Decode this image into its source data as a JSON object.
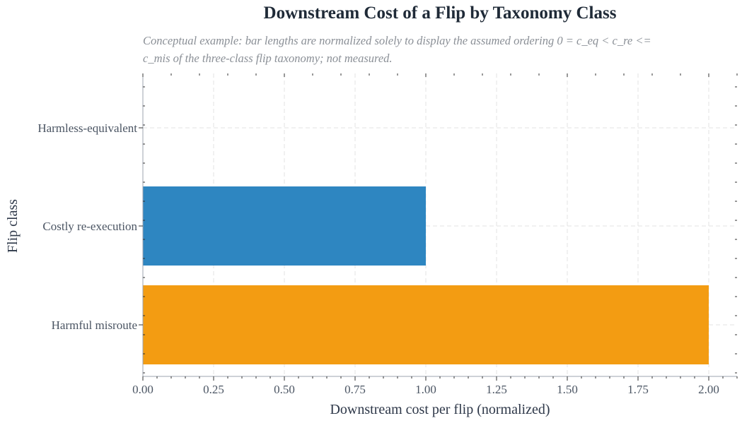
{
  "chart_data": {
    "type": "bar",
    "orientation": "horizontal",
    "title": "Downstream Cost of a Flip by Taxonomy Class",
    "subtitle_lines": [
      "Conceptual example: bar lengths are normalized solely to display the assumed ordering 0 = c_eq < c_re <=",
      "c_mis of the three-class flip taxonomy; not measured."
    ],
    "xlabel": "Downstream cost per flip (normalized)",
    "ylabel": "Flip class",
    "categories": [
      "Harmless-equivalent",
      "Costly re-execution",
      "Harmful misroute"
    ],
    "values": [
      0,
      1.0,
      2.0
    ],
    "colors": [
      "#2e86c1",
      "#2e86c1",
      "#f39c12"
    ],
    "xlim": [
      0,
      2.1
    ],
    "xticks": [
      0,
      0.25,
      0.5,
      0.75,
      1.0,
      1.25,
      1.5,
      1.75,
      2.0
    ],
    "xtick_labels": [
      "0.00",
      "0.25",
      "0.50",
      "0.75",
      "1.00",
      "1.25",
      "1.50",
      "1.75",
      "2.00"
    ],
    "grid": true,
    "legend": "none"
  }
}
